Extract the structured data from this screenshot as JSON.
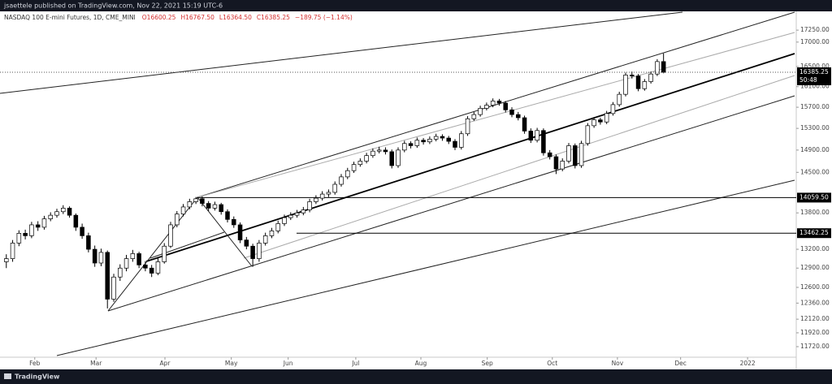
{
  "header": {
    "publisher": "jsaettele published on TradingView.com, Nov 22, 2021 15:19 UTC-6"
  },
  "chart_data": {
    "type": "candlestick",
    "title": "NASDAQ 100 E-mini Futures, 1D, CME_MINI",
    "legend_values": [
      "O16600.25",
      "H16767.50",
      "L16364.50",
      "C16385.25",
      "−189.75 (−1.14%)"
    ],
    "ohlc": [
      [
        13000,
        13120,
        12900,
        13050
      ],
      [
        13050,
        13350,
        13000,
        13300
      ],
      [
        13300,
        13510,
        13250,
        13460
      ],
      [
        13460,
        13520,
        13360,
        13420
      ],
      [
        13420,
        13650,
        13380,
        13600
      ],
      [
        13600,
        13660,
        13500,
        13560
      ],
      [
        13560,
        13750,
        13520,
        13700
      ],
      [
        13700,
        13810,
        13660,
        13760
      ],
      [
        13760,
        13870,
        13720,
        13820
      ],
      [
        13820,
        13930,
        13780,
        13880
      ],
      [
        13880,
        13910,
        13720,
        13760
      ],
      [
        13760,
        13790,
        13500,
        13560
      ],
      [
        13560,
        13620,
        13370,
        13420
      ],
      [
        13420,
        13470,
        13150,
        13200
      ],
      [
        13200,
        13260,
        12920,
        12980
      ],
      [
        12980,
        13210,
        12930,
        13150
      ],
      [
        13150,
        13180,
        12280,
        12420
      ],
      [
        12420,
        12810,
        12380,
        12760
      ],
      [
        12760,
        12960,
        12700,
        12900
      ],
      [
        12900,
        13110,
        12850,
        13050
      ],
      [
        13050,
        13190,
        13000,
        13130
      ],
      [
        13130,
        13160,
        12900,
        12950
      ],
      [
        12950,
        13010,
        12850,
        12900
      ],
      [
        12900,
        12950,
        12760,
        12820
      ],
      [
        12820,
        13060,
        12790,
        13000
      ],
      [
        13000,
        13300,
        12970,
        13250
      ],
      [
        13250,
        13650,
        13220,
        13600
      ],
      [
        13600,
        13830,
        13560,
        13780
      ],
      [
        13780,
        13950,
        13740,
        13900
      ],
      [
        13900,
        14040,
        13860,
        13990
      ],
      [
        13990,
        14070,
        13950,
        14040
      ],
      [
        14040,
        14080,
        13910,
        13960
      ],
      [
        13960,
        14000,
        13830,
        13880
      ],
      [
        13880,
        13990,
        13840,
        13940
      ],
      [
        13940,
        13970,
        13770,
        13820
      ],
      [
        13820,
        13860,
        13640,
        13690
      ],
      [
        13690,
        13740,
        13550,
        13600
      ],
      [
        13600,
        13640,
        13300,
        13350
      ],
      [
        13350,
        13400,
        13200,
        13250
      ],
      [
        13250,
        13290,
        12920,
        13050
      ],
      [
        13050,
        13350,
        13000,
        13300
      ],
      [
        13300,
        13470,
        13260,
        13420
      ],
      [
        13420,
        13550,
        13380,
        13500
      ],
      [
        13500,
        13670,
        13460,
        13620
      ],
      [
        13620,
        13770,
        13580,
        13720
      ],
      [
        13720,
        13810,
        13680,
        13760
      ],
      [
        13760,
        13850,
        13720,
        13800
      ],
      [
        13800,
        13900,
        13760,
        13850
      ],
      [
        13850,
        14040,
        13810,
        13990
      ],
      [
        13990,
        14100,
        13950,
        14050
      ],
      [
        14050,
        14170,
        14010,
        14120
      ],
      [
        14120,
        14200,
        14070,
        14150
      ],
      [
        14150,
        14340,
        14110,
        14290
      ],
      [
        14290,
        14470,
        14250,
        14420
      ],
      [
        14420,
        14580,
        14380,
        14530
      ],
      [
        14530,
        14690,
        14490,
        14640
      ],
      [
        14640,
        14750,
        14600,
        14700
      ],
      [
        14700,
        14850,
        14660,
        14800
      ],
      [
        14800,
        14930,
        14760,
        14880
      ],
      [
        14880,
        14960,
        14840,
        14900
      ],
      [
        14900,
        14950,
        14820,
        14870
      ],
      [
        14870,
        14910,
        14570,
        14620
      ],
      [
        14620,
        14950,
        14580,
        14900
      ],
      [
        14900,
        15070,
        14860,
        15020
      ],
      [
        15020,
        15060,
        14930,
        14980
      ],
      [
        14980,
        15130,
        14940,
        15080
      ],
      [
        15080,
        15120,
        15000,
        15050
      ],
      [
        15050,
        15150,
        15010,
        15100
      ],
      [
        15100,
        15200,
        15060,
        15150
      ],
      [
        15150,
        15190,
        15070,
        15120
      ],
      [
        15120,
        15160,
        15010,
        15060
      ],
      [
        15060,
        15100,
        14900,
        14950
      ],
      [
        14950,
        15250,
        14910,
        15200
      ],
      [
        15200,
        15530,
        15160,
        15480
      ],
      [
        15480,
        15610,
        15440,
        15560
      ],
      [
        15560,
        15730,
        15520,
        15680
      ],
      [
        15680,
        15790,
        15640,
        15740
      ],
      [
        15740,
        15870,
        15700,
        15820
      ],
      [
        15820,
        15860,
        15730,
        15780
      ],
      [
        15780,
        15820,
        15600,
        15650
      ],
      [
        15650,
        15700,
        15510,
        15560
      ],
      [
        15560,
        15610,
        15450,
        15500
      ],
      [
        15500,
        15540,
        15200,
        15250
      ],
      [
        15250,
        15300,
        15030,
        15080
      ],
      [
        15080,
        15310,
        15040,
        15260
      ],
      [
        15260,
        15300,
        14800,
        14850
      ],
      [
        14850,
        14900,
        14730,
        14780
      ],
      [
        14780,
        14820,
        14470,
        14560
      ],
      [
        14560,
        14750,
        14520,
        14700
      ],
      [
        14700,
        15030,
        14660,
        14980
      ],
      [
        14980,
        15020,
        14570,
        14620
      ],
      [
        14620,
        15070,
        14580,
        15020
      ],
      [
        15020,
        15400,
        14980,
        15350
      ],
      [
        15350,
        15510,
        15310,
        15460
      ],
      [
        15460,
        15500,
        15370,
        15420
      ],
      [
        15420,
        15630,
        15380,
        15580
      ],
      [
        15580,
        15800,
        15540,
        15750
      ],
      [
        15750,
        16000,
        15710,
        15950
      ],
      [
        15950,
        16380,
        15910,
        16330
      ],
      [
        16330,
        16400,
        16260,
        16310
      ],
      [
        16310,
        16350,
        16010,
        16060
      ],
      [
        16060,
        16250,
        16020,
        16200
      ],
      [
        16200,
        16400,
        16160,
        16350
      ],
      [
        16350,
        16650,
        16310,
        16600
      ],
      [
        16600.25,
        16767.5,
        16364.5,
        16385.25
      ]
    ],
    "up_color": "#ffffff",
    "down_color": "#000000",
    "wick_color": "#000000",
    "log_scale": true,
    "xlim": [
      -1,
      125
    ],
    "xticks": [
      {
        "value": 4.5,
        "label": "Feb"
      },
      {
        "value": 14.2,
        "label": "Mar"
      },
      {
        "value": 25.1,
        "label": "Apr"
      },
      {
        "value": 35.6,
        "label": "May"
      },
      {
        "value": 44.6,
        "label": "Jun"
      },
      {
        "value": 55.3,
        "label": "Jul"
      },
      {
        "value": 65.6,
        "label": "Aug"
      },
      {
        "value": 76.1,
        "label": "Sep"
      },
      {
        "value": 86.4,
        "label": "Oct"
      },
      {
        "value": 96.7,
        "label": "Nov"
      },
      {
        "value": 106.7,
        "label": "Dec"
      },
      {
        "value": 117.3,
        "label": "2022"
      }
    ],
    "ylim": [
      11570,
      17650
    ],
    "yticks": [
      {
        "value": 17250,
        "label": "17250.00"
      },
      {
        "value": 17000,
        "label": "17000.00"
      },
      {
        "value": 16500,
        "label": "16500.00"
      },
      {
        "value": 16100,
        "label": "16100.00"
      },
      {
        "value": 15700,
        "label": "15700.00"
      },
      {
        "value": 15300,
        "label": "15300.00"
      },
      {
        "value": 14900,
        "label": "14900.00"
      },
      {
        "value": 14500,
        "label": "14500.00"
      },
      {
        "value": 13800,
        "label": "13800.00"
      },
      {
        "value": 13200,
        "label": "13200.00"
      },
      {
        "value": 12900,
        "label": "12900.00"
      },
      {
        "value": 12600,
        "label": "12600.00"
      },
      {
        "value": 12360,
        "label": "12360.00"
      },
      {
        "value": 12120,
        "label": "12120.00"
      },
      {
        "value": 11920,
        "label": "11920.00"
      },
      {
        "value": 11720,
        "label": "11720.00"
      }
    ],
    "levels": [
      {
        "value": 14059.5,
        "label": "14059.50"
      },
      {
        "value": 13462.25,
        "label": "13462.25"
      }
    ],
    "countdown": "50:48"
  },
  "footer": {
    "brand": "TradingView"
  }
}
